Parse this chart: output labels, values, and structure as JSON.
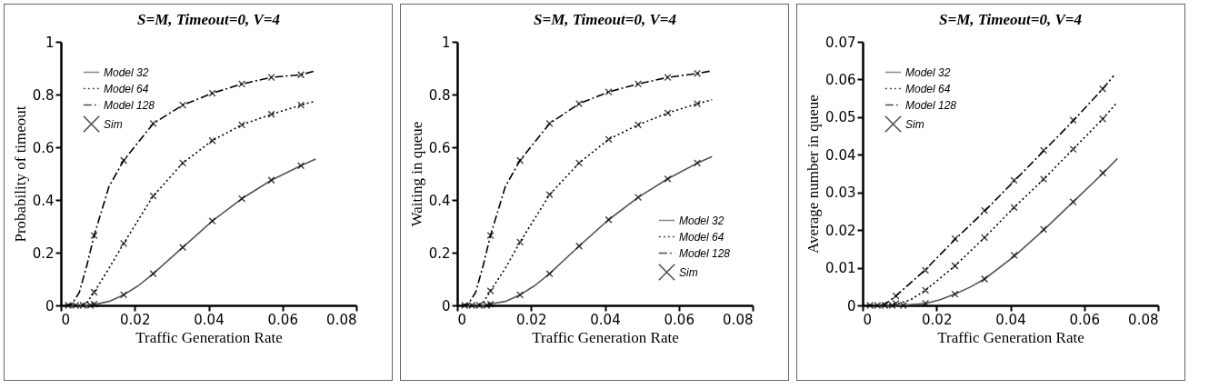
{
  "chart_data": [
    {
      "type": "line",
      "title": "S=M, Timeout=0, V=4",
      "xlabel": "Traffic Generation Rate",
      "ylabel": "Probability of timeout",
      "legend": "top left",
      "grid": false,
      "xlim": [
        0,
        0.08
      ],
      "xticks": [
        0,
        0.02,
        0.04,
        0.06,
        0.08
      ],
      "ylim": [
        0,
        1
      ],
      "yticks": [
        0,
        0.2,
        0.4,
        0.6,
        0.8,
        1
      ],
      "series": [
        {
          "name": "Model 32",
          "color": "#555555",
          "line_style": "solid",
          "x": [
            0.001,
            0.003,
            0.005,
            0.007,
            0.009,
            0.013,
            0.017,
            0.021,
            0.025,
            0.033,
            0.041,
            0.049,
            0.057,
            0.065,
            0.069
          ],
          "values": [
            0,
            0,
            0,
            0,
            0.003,
            0.015,
            0.04,
            0.075,
            0.12,
            0.22,
            0.32,
            0.405,
            0.475,
            0.53,
            0.555
          ]
        },
        {
          "name": "Model 64",
          "color": "#000000",
          "line_style": "dotted",
          "x": [
            0.001,
            0.003,
            0.005,
            0.007,
            0.009,
            0.013,
            0.017,
            0.025,
            0.033,
            0.041,
            0.049,
            0.057,
            0.065,
            0.069
          ],
          "values": [
            0,
            0,
            0,
            0.01,
            0.05,
            0.14,
            0.235,
            0.415,
            0.54,
            0.625,
            0.685,
            0.725,
            0.76,
            0.775
          ]
        },
        {
          "name": "Model 128",
          "color": "#000000",
          "line_style": "dashed",
          "x": [
            0.001,
            0.003,
            0.005,
            0.007,
            0.009,
            0.013,
            0.017,
            0.025,
            0.033,
            0.041,
            0.049,
            0.057,
            0.065,
            0.069
          ],
          "values": [
            0,
            0.005,
            0.05,
            0.15,
            0.265,
            0.45,
            0.55,
            0.69,
            0.76,
            0.805,
            0.84,
            0.865,
            0.875,
            0.89
          ]
        },
        {
          "name": "Sim",
          "type": "scatter",
          "marker": "cross",
          "color": "#000000",
          "x": [
            0.002,
            0.004,
            0.006,
            0.008,
            0.009,
            0.017,
            0.025,
            0.033,
            0.041,
            0.049,
            0.057,
            0.065,
            0.009,
            0.017,
            0.025,
            0.033,
            0.041,
            0.049,
            0.057,
            0.065,
            0.009,
            0.017,
            0.025,
            0.033,
            0.041,
            0.049,
            0.057,
            0.065
          ],
          "values": [
            0,
            0,
            0,
            0,
            0.005,
            0.04,
            0.12,
            0.22,
            0.32,
            0.405,
            0.475,
            0.53,
            0.05,
            0.235,
            0.415,
            0.54,
            0.625,
            0.685,
            0.725,
            0.76,
            0.265,
            0.55,
            0.69,
            0.76,
            0.805,
            0.84,
            0.865,
            0.875
          ]
        }
      ]
    },
    {
      "type": "line",
      "title": "S=M, Timeout=0, V=4",
      "xlabel": "Traffic Generation Rate",
      "ylabel": "Waiting in queue",
      "legend": "bottom right",
      "grid": false,
      "xlim": [
        0,
        0.08
      ],
      "xticks": [
        0,
        0.02,
        0.04,
        0.06,
        0.08
      ],
      "ylim": [
        0,
        1
      ],
      "yticks": [
        0,
        0.2,
        0.4,
        0.6,
        0.8,
        1
      ],
      "series": [
        {
          "name": "Model 32",
          "color": "#555555",
          "line_style": "solid",
          "x": [
            0.001,
            0.003,
            0.005,
            0.007,
            0.009,
            0.013,
            0.017,
            0.021,
            0.025,
            0.033,
            0.041,
            0.049,
            0.057,
            0.065,
            0.069
          ],
          "values": [
            0,
            0,
            0,
            0,
            0.005,
            0.015,
            0.04,
            0.075,
            0.12,
            0.225,
            0.325,
            0.41,
            0.48,
            0.54,
            0.565
          ]
        },
        {
          "name": "Model 64",
          "color": "#000000",
          "line_style": "dotted",
          "x": [
            0.001,
            0.003,
            0.005,
            0.007,
            0.009,
            0.013,
            0.017,
            0.025,
            0.033,
            0.041,
            0.049,
            0.057,
            0.065,
            0.069
          ],
          "values": [
            0,
            0,
            0,
            0.01,
            0.055,
            0.14,
            0.24,
            0.42,
            0.54,
            0.63,
            0.685,
            0.73,
            0.765,
            0.78
          ]
        },
        {
          "name": "Model 128",
          "color": "#000000",
          "line_style": "dashed",
          "x": [
            0.001,
            0.003,
            0.005,
            0.007,
            0.009,
            0.013,
            0.017,
            0.025,
            0.033,
            0.041,
            0.049,
            0.057,
            0.065,
            0.069
          ],
          "values": [
            0,
            0.005,
            0.05,
            0.15,
            0.265,
            0.45,
            0.55,
            0.69,
            0.765,
            0.81,
            0.84,
            0.865,
            0.88,
            0.89
          ]
        },
        {
          "name": "Sim",
          "type": "scatter",
          "marker": "cross",
          "color": "#000000",
          "x": [
            0.002,
            0.004,
            0.006,
            0.008,
            0.009,
            0.017,
            0.025,
            0.033,
            0.041,
            0.049,
            0.057,
            0.065,
            0.009,
            0.017,
            0.025,
            0.033,
            0.041,
            0.049,
            0.057,
            0.065,
            0.009,
            0.017,
            0.025,
            0.033,
            0.041,
            0.049,
            0.057,
            0.065
          ],
          "values": [
            0,
            0,
            0,
            0,
            0.005,
            0.04,
            0.12,
            0.225,
            0.325,
            0.41,
            0.48,
            0.54,
            0.055,
            0.24,
            0.42,
            0.54,
            0.63,
            0.685,
            0.73,
            0.765,
            0.265,
            0.55,
            0.69,
            0.765,
            0.81,
            0.84,
            0.865,
            0.88
          ]
        }
      ]
    },
    {
      "type": "line",
      "title": "S=M, Timeout=0, V=4",
      "xlabel": "Traffic Generation Rate",
      "ylabel": "Average number in queue",
      "legend": "top left",
      "grid": false,
      "xlim": [
        0,
        0.08
      ],
      "xticks": [
        0,
        0.02,
        0.04,
        0.06,
        0.08
      ],
      "ylim": [
        0,
        0.07
      ],
      "yticks": [
        0,
        0.01,
        0.02,
        0.03,
        0.04,
        0.05,
        0.06,
        0.07
      ],
      "series": [
        {
          "name": "Model 32",
          "color": "#555555",
          "line_style": "solid",
          "x": [
            0.001,
            0.005,
            0.009,
            0.013,
            0.017,
            0.021,
            0.025,
            0.029,
            0.033,
            0.041,
            0.049,
            0.057,
            0.065,
            0.069
          ],
          "values": [
            0,
            0,
            0,
            0.0002,
            0.0005,
            0.0015,
            0.003,
            0.0048,
            0.007,
            0.013,
            0.02,
            0.0275,
            0.035,
            0.039
          ]
        },
        {
          "name": "Model 64",
          "color": "#000000",
          "line_style": "dotted",
          "x": [
            0.001,
            0.005,
            0.009,
            0.013,
            0.017,
            0.025,
            0.033,
            0.041,
            0.049,
            0.057,
            0.065,
            0.069
          ],
          "values": [
            0,
            0,
            0.0003,
            0.0015,
            0.004,
            0.0105,
            0.018,
            0.026,
            0.0335,
            0.0415,
            0.0495,
            0.054
          ]
        },
        {
          "name": "Model 128",
          "color": "#000000",
          "line_style": "dashed",
          "x": [
            0.001,
            0.005,
            0.007,
            0.009,
            0.017,
            0.025,
            0.033,
            0.041,
            0.049,
            0.057,
            0.065,
            0.068
          ],
          "values": [
            0,
            0,
            0.001,
            0.0025,
            0.0095,
            0.0175,
            0.025,
            0.033,
            0.041,
            0.049,
            0.0575,
            0.061
          ]
        },
        {
          "name": "Sim",
          "type": "scatter",
          "marker": "cross",
          "color": "#000000",
          "x": [
            0.002,
            0.004,
            0.006,
            0.008,
            0.011,
            0.017,
            0.025,
            0.033,
            0.041,
            0.049,
            0.057,
            0.065,
            0.009,
            0.017,
            0.025,
            0.033,
            0.041,
            0.049,
            0.057,
            0.065,
            0.009,
            0.017,
            0.025,
            0.033,
            0.041,
            0.049,
            0.057,
            0.065
          ],
          "values": [
            0,
            0,
            0,
            0,
            0,
            0.0005,
            0.003,
            0.007,
            0.0133,
            0.0202,
            0.0275,
            0.0352,
            0.0005,
            0.004,
            0.0105,
            0.018,
            0.026,
            0.0335,
            0.0415,
            0.0495,
            0.0025,
            0.0093,
            0.0177,
            0.0252,
            0.0332,
            0.0412,
            0.0492,
            0.0575
          ]
        }
      ]
    }
  ]
}
